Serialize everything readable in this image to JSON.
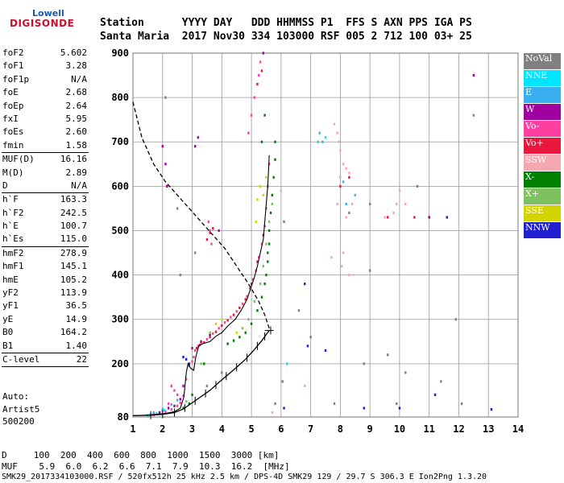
{
  "logo": {
    "line1": "Lowell",
    "line2": "DIGISONDE"
  },
  "header": {
    "line1": "Station      YYYY DAY   DDD HHMMSS P1  FFS S AXN PPS IGA PS",
    "line2": "Santa Maria  2017 Nov30 334 103000 RSF 005 2 712 100 03+ 25"
  },
  "params": {
    "group1": [
      {
        "k": "foF2",
        "v": "5.602"
      },
      {
        "k": "foF1",
        "v": "3.28"
      },
      {
        "k": "foF1p",
        "v": "N/A"
      },
      {
        "k": "foE",
        "v": "2.68"
      },
      {
        "k": "foEp",
        "v": "2.64"
      },
      {
        "k": "fxI",
        "v": "5.95"
      },
      {
        "k": "foEs",
        "v": "2.60"
      },
      {
        "k": "fmin",
        "v": "1.58"
      }
    ],
    "group2": [
      {
        "k": "MUF(D)",
        "v": "16.16"
      },
      {
        "k": "M(D)",
        "v": "2.89"
      },
      {
        "k": "D",
        "v": "N/A"
      }
    ],
    "group3": [
      {
        "k": "h`F",
        "v": "163.3"
      },
      {
        "k": "h`F2",
        "v": "242.5"
      },
      {
        "k": "h`E",
        "v": "100.7"
      },
      {
        "k": "h`Es",
        "v": "115.0"
      }
    ],
    "group4": [
      {
        "k": "hmF2",
        "v": "278.9"
      },
      {
        "k": "hmF1",
        "v": "145.1"
      },
      {
        "k": "hmE",
        "v": "105.2"
      },
      {
        "k": "yF2",
        "v": "113.9"
      },
      {
        "k": "yF1",
        "v": "36.5"
      },
      {
        "k": "yE",
        "v": "14.9"
      },
      {
        "k": "B0",
        "v": "164.2"
      },
      {
        "k": "B1",
        "v": "1.40"
      }
    ],
    "group5": [
      {
        "k": "C-level",
        "v": "22"
      }
    ]
  },
  "autoscaling": {
    "line1": "Auto:",
    "line2": "Artist5",
    "line3": "500200"
  },
  "legend": [
    {
      "label": "NoVal",
      "color": "#808080"
    },
    {
      "label": "NNE",
      "color": "#00e5ff"
    },
    {
      "label": "E",
      "color": "#3ab0f0"
    },
    {
      "label": "W",
      "color": "#a000a0"
    },
    {
      "label": "Vo-",
      "color": "#ff40a0"
    },
    {
      "label": "Vo+",
      "color": "#e8183c"
    },
    {
      "label": "SSW",
      "color": "#f4a8b0"
    },
    {
      "label": "X-",
      "color": "#008000"
    },
    {
      "label": "X+",
      "color": "#7fc060"
    },
    {
      "label": "SSE",
      "color": "#d4d400"
    },
    {
      "label": "NNW",
      "color": "#2020d0"
    }
  ],
  "footer": {
    "line1": "D     100  200  400  600  800  1000  1500  3000 [km]",
    "line2": "MUF    5.9  6.0  6.2  6.6  7.1  7.9  10.3  16.2  [MHz]",
    "line3": "SMK29_2017334103000.RSF / 520fx512h 25 kHz 2.5 km / DPS-4D SMK29 129 / 29.7 S 306.3 E Ion2Png 1.3.20"
  },
  "chart_data": {
    "type": "scatter",
    "xlim": [
      1,
      14
    ],
    "ylim": [
      80,
      900
    ],
    "x_ticks": [
      "1",
      "2",
      "3",
      "4",
      "5",
      "6",
      "7",
      "8",
      "9",
      "10",
      "11",
      "12",
      "13",
      "14"
    ],
    "y_ticks": [
      "80",
      "200",
      "300",
      "400",
      "500",
      "600",
      "700",
      "800",
      "900"
    ],
    "grid": true,
    "legend_position": "right",
    "series": [
      {
        "name": "Vo-",
        "color": "#ff40a0",
        "points": [
          [
            1.7,
            85
          ],
          [
            1.9,
            88
          ],
          [
            2.1,
            92
          ],
          [
            2.3,
            97
          ],
          [
            2.5,
            105
          ],
          [
            2.6,
            112
          ],
          [
            2.7,
            128
          ],
          [
            2.8,
            165
          ],
          [
            2.9,
            195
          ],
          [
            3.0,
            205
          ],
          [
            3.05,
            215
          ],
          [
            3.1,
            230
          ],
          [
            3.2,
            240
          ],
          [
            3.3,
            247
          ],
          [
            3.5,
            255
          ],
          [
            3.7,
            268
          ],
          [
            3.9,
            280
          ],
          [
            4.1,
            293
          ],
          [
            4.3,
            305
          ],
          [
            4.5,
            318
          ],
          [
            4.7,
            335
          ],
          [
            4.85,
            352
          ],
          [
            4.95,
            370
          ],
          [
            5.05,
            390
          ],
          [
            5.15,
            410
          ],
          [
            5.25,
            440
          ],
          [
            5.35,
            470
          ],
          [
            5.45,
            510
          ],
          [
            5.5,
            550
          ],
          [
            5.55,
            600
          ],
          [
            5.6,
            650
          ],
          [
            4.9,
            720
          ],
          [
            5.0,
            760
          ],
          [
            5.1,
            800
          ],
          [
            5.25,
            850
          ],
          [
            5.3,
            880
          ],
          [
            3.6,
            500
          ],
          [
            3.65,
            470
          ],
          [
            3.55,
            520
          ],
          [
            2.5,
            130
          ],
          [
            2.4,
            140
          ],
          [
            2.3,
            150
          ],
          [
            2.2,
            110
          ],
          [
            2.0,
            95
          ]
        ]
      },
      {
        "name": "Vo+",
        "color": "#e8183c",
        "points": [
          [
            3.15,
            235
          ],
          [
            3.25,
            242
          ],
          [
            3.4,
            248
          ],
          [
            3.6,
            260
          ],
          [
            3.8,
            272
          ],
          [
            4.0,
            286
          ],
          [
            4.2,
            298
          ],
          [
            4.4,
            310
          ],
          [
            4.6,
            326
          ],
          [
            4.8,
            345
          ],
          [
            5.0,
            380
          ],
          [
            5.2,
            430
          ],
          [
            5.4,
            490
          ],
          [
            3.5,
            480
          ],
          [
            3.6,
            495
          ],
          [
            3.7,
            505
          ],
          [
            5.35,
            860
          ],
          [
            5.2,
            830
          ],
          [
            8.3,
            620
          ],
          [
            8.0,
            600
          ],
          [
            10.5,
            530
          ],
          [
            11.0,
            530
          ],
          [
            9.6,
            530
          ]
        ]
      },
      {
        "name": "W",
        "color": "#a000a0",
        "points": [
          [
            1.9,
            90
          ],
          [
            2.2,
            100
          ],
          [
            2.4,
            105
          ],
          [
            2.6,
            120
          ],
          [
            2.7,
            150
          ],
          [
            3.0,
            235
          ],
          [
            3.3,
            250
          ],
          [
            3.6,
            265
          ],
          [
            5.4,
            900
          ],
          [
            3.9,
            500
          ],
          [
            2.0,
            690
          ],
          [
            2.1,
            650
          ],
          [
            2.15,
            600
          ],
          [
            11.0,
            530
          ],
          [
            12.5,
            850
          ],
          [
            3.2,
            710
          ],
          [
            3.1,
            690
          ]
        ]
      },
      {
        "name": "X-",
        "color": "#008000",
        "points": [
          [
            5.5,
            400
          ],
          [
            5.55,
            450
          ],
          [
            5.6,
            500
          ],
          [
            5.65,
            540
          ],
          [
            5.7,
            580
          ],
          [
            5.75,
            620
          ],
          [
            5.8,
            660
          ],
          [
            5.8,
            700
          ],
          [
            5.6,
            470
          ],
          [
            5.55,
            430
          ],
          [
            5.45,
            380
          ],
          [
            5.35,
            350
          ],
          [
            5.2,
            320
          ],
          [
            5.0,
            290
          ],
          [
            4.8,
            270
          ],
          [
            4.6,
            260
          ],
          [
            4.4,
            252
          ],
          [
            4.2,
            245
          ],
          [
            5.35,
            700
          ],
          [
            5.45,
            760
          ],
          [
            2.7,
            100
          ],
          [
            2.9,
            110
          ],
          [
            3.0,
            130
          ],
          [
            3.4,
            200
          ]
        ]
      },
      {
        "name": "X+",
        "color": "#7fc060",
        "points": [
          [
            5.7,
            560
          ],
          [
            5.6,
            520
          ],
          [
            5.5,
            470
          ],
          [
            5.4,
            420
          ],
          [
            5.3,
            380
          ],
          [
            5.1,
            340
          ],
          [
            4.9,
            300
          ],
          [
            4.7,
            280
          ],
          [
            3.6,
            270
          ],
          [
            3.3,
            200
          ],
          [
            2.8,
            115
          ]
        ]
      },
      {
        "name": "SSE",
        "color": "#d4d400",
        "points": [
          [
            5.3,
            600
          ],
          [
            5.4,
            580
          ],
          [
            5.5,
            620
          ],
          [
            4.5,
            270
          ],
          [
            5.2,
            570
          ],
          [
            5.15,
            520
          ],
          [
            3.8,
            290
          ],
          [
            4.0,
            300
          ]
        ]
      },
      {
        "name": "E",
        "color": "#3ab0f0",
        "points": [
          [
            1.6,
            85
          ],
          [
            1.7,
            90
          ],
          [
            2.0,
            98
          ],
          [
            2.3,
            108
          ],
          [
            2.5,
            118
          ],
          [
            7.4,
            700
          ],
          [
            7.3,
            720
          ],
          [
            8.5,
            580
          ],
          [
            8.2,
            560
          ],
          [
            8.1,
            610
          ]
        ]
      },
      {
        "name": "NNE",
        "color": "#00e5ff",
        "points": [
          [
            1.5,
            84
          ],
          [
            1.8,
            88
          ],
          [
            2.05,
            95
          ],
          [
            7.5,
            710
          ],
          [
            6.2,
            200
          ],
          [
            7.25,
            700
          ]
        ]
      },
      {
        "name": "SSW",
        "color": "#f4a8b0",
        "points": [
          [
            7.8,
            740
          ],
          [
            7.9,
            720
          ],
          [
            7.95,
            700
          ],
          [
            8.0,
            680
          ],
          [
            8.1,
            650
          ],
          [
            8.2,
            640
          ],
          [
            8.3,
            630
          ],
          [
            8.0,
            620
          ],
          [
            7.9,
            560
          ],
          [
            8.4,
            560
          ],
          [
            8.2,
            530
          ],
          [
            9.5,
            530
          ],
          [
            9.8,
            540
          ],
          [
            9.9,
            560
          ],
          [
            10.2,
            560
          ],
          [
            10.0,
            590
          ],
          [
            6.1,
            520
          ],
          [
            6.0,
            590
          ],
          [
            8.1,
            450
          ],
          [
            8.05,
            420
          ],
          [
            5.7,
            90
          ],
          [
            6.8,
            150
          ],
          [
            7.7,
            440
          ],
          [
            8.3,
            400
          ]
        ]
      },
      {
        "name": "NNW",
        "color": "#2020d0",
        "points": [
          [
            2.8,
            210
          ],
          [
            2.9,
            200
          ],
          [
            2.7,
            215
          ],
          [
            8.8,
            100
          ],
          [
            11.2,
            130
          ],
          [
            6.1,
            100
          ],
          [
            10.0,
            100
          ],
          [
            13.1,
            97
          ],
          [
            6.8,
            380
          ],
          [
            11.6,
            530
          ],
          [
            7.5,
            230
          ],
          [
            6.9,
            240
          ]
        ]
      },
      {
        "name": "NoVal",
        "color": "#808080",
        "points": [
          [
            2.6,
            400
          ],
          [
            3.1,
            450
          ],
          [
            6.1,
            520
          ],
          [
            5.8,
            110
          ],
          [
            7.8,
            110
          ],
          [
            9.9,
            110
          ],
          [
            12.1,
            110
          ],
          [
            6.6,
            320
          ],
          [
            9.6,
            220
          ],
          [
            10.2,
            180
          ],
          [
            11.4,
            160
          ],
          [
            8.8,
            200
          ],
          [
            6.05,
            160
          ],
          [
            7.0,
            260
          ],
          [
            8.3,
            540
          ],
          [
            9.0,
            560
          ],
          [
            10.6,
            600
          ],
          [
            12.5,
            760
          ],
          [
            11.9,
            300
          ],
          [
            9.0,
            410
          ],
          [
            3.5,
            150
          ],
          [
            4.0,
            180
          ],
          [
            2.1,
            800
          ],
          [
            2.5,
            550
          ]
        ]
      }
    ],
    "trace_solid": [
      [
        1.0,
        83
      ],
      [
        1.4,
        84
      ],
      [
        1.8,
        86
      ],
      [
        2.1,
        88
      ],
      [
        2.4,
        92
      ],
      [
        2.6,
        100
      ],
      [
        2.72,
        125
      ],
      [
        2.8,
        180
      ],
      [
        2.86,
        200
      ],
      [
        2.95,
        190
      ],
      [
        3.05,
        185
      ],
      [
        3.12,
        215
      ],
      [
        3.22,
        240
      ],
      [
        3.35,
        245
      ],
      [
        3.6,
        250
      ],
      [
        3.8,
        262
      ],
      [
        4.0,
        270
      ],
      [
        4.2,
        285
      ],
      [
        4.45,
        300
      ],
      [
        4.65,
        320
      ],
      [
        4.85,
        345
      ],
      [
        5.0,
        375
      ],
      [
        5.1,
        395
      ],
      [
        5.2,
        420
      ],
      [
        5.3,
        450
      ],
      [
        5.4,
        480
      ],
      [
        5.45,
        520
      ],
      [
        5.5,
        560
      ],
      [
        5.55,
        600
      ],
      [
        5.58,
        640
      ],
      [
        5.6,
        670
      ]
    ],
    "true_height": [
      [
        1.0,
        83
      ],
      [
        1.6,
        84
      ],
      [
        2.0,
        86
      ],
      [
        2.4,
        90
      ],
      [
        2.7,
        98
      ],
      [
        3.0,
        112
      ],
      [
        3.3,
        126
      ],
      [
        3.6,
        140
      ],
      [
        3.9,
        158
      ],
      [
        4.2,
        175
      ],
      [
        4.5,
        192
      ],
      [
        4.8,
        210
      ],
      [
        5.1,
        232
      ],
      [
        5.35,
        252
      ],
      [
        5.5,
        266
      ],
      [
        5.6,
        275
      ]
    ],
    "true_height_errorbar_x": [
      1.6,
      2.0,
      2.4,
      2.75,
      3.1,
      3.45,
      3.8,
      4.15,
      4.5,
      4.85,
      5.2,
      5.45,
      5.65
    ],
    "model_profile": [
      [
        1.0,
        790
      ],
      [
        1.3,
        710
      ],
      [
        1.7,
        650
      ],
      [
        2.1,
        610
      ],
      [
        2.5,
        580
      ],
      [
        2.9,
        550
      ],
      [
        3.3,
        520
      ],
      [
        3.7,
        490
      ],
      [
        4.1,
        460
      ],
      [
        4.5,
        420
      ],
      [
        4.9,
        380
      ],
      [
        5.25,
        340
      ],
      [
        5.45,
        310
      ],
      [
        5.6,
        280
      ]
    ]
  }
}
